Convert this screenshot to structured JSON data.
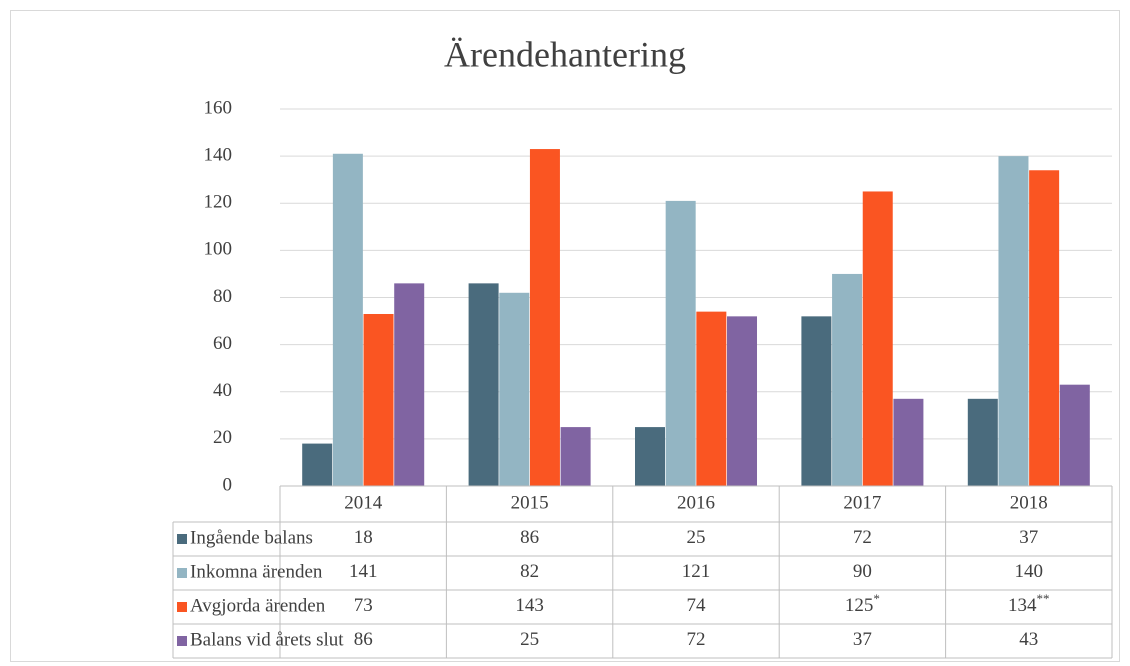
{
  "chart_data": {
    "type": "bar",
    "title": "Ärendehantering",
    "categories": [
      "2014",
      "2015",
      "2016",
      "2017",
      "2018"
    ],
    "series": [
      {
        "name": "Ingående balans",
        "color": "#4a6b7d",
        "values": [
          18,
          86,
          25,
          72,
          37
        ]
      },
      {
        "name": "Inkomna ärenden",
        "color": "#93b5c3",
        "values": [
          141,
          82,
          121,
          90,
          140
        ]
      },
      {
        "name": "Avgjorda ärenden",
        "color": "#fa5522",
        "values": [
          73,
          143,
          74,
          125,
          134
        ],
        "notes": {
          "3": "*",
          "4": "**"
        }
      },
      {
        "name": "Balans vid årets slut",
        "color": "#8064a2",
        "values": [
          86,
          25,
          72,
          37,
          43
        ]
      }
    ],
    "ylim": [
      0,
      160
    ],
    "yticks": [
      0,
      20,
      40,
      60,
      80,
      100,
      120,
      140,
      160
    ],
    "grid": true,
    "data_table": true
  }
}
